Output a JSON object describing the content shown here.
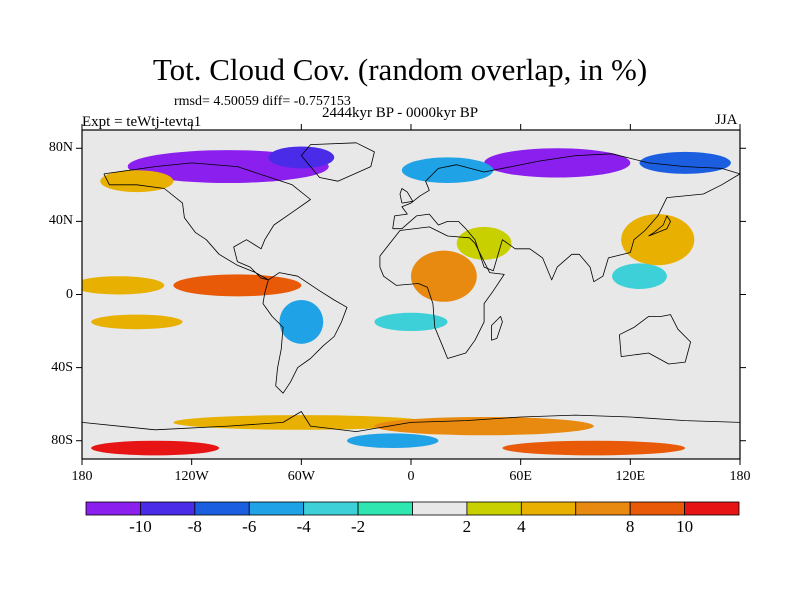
{
  "title": "Tot. Cloud Cov. (random overlap, in %)",
  "stats": "rmsd= 4.50059 diff= -0.757153",
  "period": "2444kyr BP - 0000kyr BP",
  "experiment": "Expt = teWtj-tevta1",
  "season": "JJA",
  "axes": {
    "lat_ticks": [
      {
        "label": "80N",
        "value": 80
      },
      {
        "label": "40N",
        "value": 40
      },
      {
        "label": "0",
        "value": 0
      },
      {
        "label": "40S",
        "value": -40
      },
      {
        "label": "80S",
        "value": -80
      }
    ],
    "lon_ticks": [
      {
        "label": "180",
        "value": -180
      },
      {
        "label": "120W",
        "value": -120
      },
      {
        "label": "60W",
        "value": -60
      },
      {
        "label": "0",
        "value": 0
      },
      {
        "label": "60E",
        "value": 60
      },
      {
        "label": "120E",
        "value": 120
      },
      {
        "label": "180",
        "value": 180
      }
    ],
    "lat_range": [
      -90,
      90
    ],
    "lon_range": [
      -180,
      180
    ]
  },
  "colorbar": {
    "colors": [
      "#8b20ee",
      "#4a2be8",
      "#1b5fe0",
      "#1fa2e6",
      "#3ed0d8",
      "#2ee6b0",
      "#e8e8e8",
      "#c8d000",
      "#e8b000",
      "#e88a10",
      "#e85a08",
      "#e61414"
    ],
    "labels": [
      {
        "text": "-10",
        "boundary": 1
      },
      {
        "text": "-8",
        "boundary": 2
      },
      {
        "text": "-6",
        "boundary": 3
      },
      {
        "text": "-4",
        "boundary": 4
      },
      {
        "text": "-2",
        "boundary": 5
      },
      {
        "text": "2",
        "boundary": 7
      },
      {
        "text": "4",
        "boundary": 8
      },
      {
        "text": "8",
        "boundary": 10
      },
      {
        "text": "10",
        "boundary": 11
      }
    ]
  },
  "field_patches": [
    {
      "lon": -100,
      "lat": 70,
      "rx": 55,
      "ry": 9,
      "color": "#8b20ee"
    },
    {
      "lon": -60,
      "lat": 75,
      "rx": 18,
      "ry": 6,
      "color": "#4a2be8"
    },
    {
      "lon": 80,
      "lat": 72,
      "rx": 40,
      "ry": 8,
      "color": "#8b20ee"
    },
    {
      "lon": 20,
      "lat": 68,
      "rx": 25,
      "ry": 7,
      "color": "#1fa2e6"
    },
    {
      "lon": 150,
      "lat": 72,
      "rx": 25,
      "ry": 6,
      "color": "#1b5fe0"
    },
    {
      "lon": -150,
      "lat": 62,
      "rx": 20,
      "ry": 6,
      "color": "#e8b000"
    },
    {
      "lon": 135,
      "lat": 30,
      "rx": 20,
      "ry": 14,
      "color": "#e8b000"
    },
    {
      "lon": 125,
      "lat": 10,
      "rx": 15,
      "ry": 7,
      "color": "#3ed0d8"
    },
    {
      "lon": 18,
      "lat": 10,
      "rx": 18,
      "ry": 14,
      "color": "#e88a10"
    },
    {
      "lon": 40,
      "lat": 28,
      "rx": 15,
      "ry": 9,
      "color": "#c8d000"
    },
    {
      "lon": -95,
      "lat": 5,
      "rx": 35,
      "ry": 6,
      "color": "#e85a08"
    },
    {
      "lon": -160,
      "lat": 5,
      "rx": 25,
      "ry": 5,
      "color": "#e8b000"
    },
    {
      "lon": -60,
      "lat": -15,
      "rx": 12,
      "ry": 12,
      "color": "#1fa2e6"
    },
    {
      "lon": 0,
      "lat": -15,
      "rx": 20,
      "ry": 5,
      "color": "#3ed0d8"
    },
    {
      "lon": -150,
      "lat": -15,
      "rx": 25,
      "ry": 4,
      "color": "#e8b000"
    },
    {
      "lon": -60,
      "lat": -70,
      "rx": 70,
      "ry": 4,
      "color": "#e8b000"
    },
    {
      "lon": 40,
      "lat": -72,
      "rx": 60,
      "ry": 5,
      "color": "#e88a10"
    },
    {
      "lon": -140,
      "lat": -84,
      "rx": 35,
      "ry": 4,
      "color": "#e61414"
    },
    {
      "lon": 100,
      "lat": -84,
      "rx": 50,
      "ry": 4,
      "color": "#e85a08"
    },
    {
      "lon": -10,
      "lat": -80,
      "rx": 25,
      "ry": 4,
      "color": "#1fa2e6"
    }
  ],
  "continents": [
    {
      "name": "North America",
      "points": [
        [
          -168,
          66
        ],
        [
          -140,
          70
        ],
        [
          -120,
          72
        ],
        [
          -95,
          70
        ],
        [
          -80,
          65
        ],
        [
          -65,
          60
        ],
        [
          -55,
          52
        ],
        [
          -65,
          45
        ],
        [
          -75,
          38
        ],
        [
          -80,
          30
        ],
        [
          -82,
          25
        ],
        [
          -90,
          30
        ],
        [
          -97,
          26
        ],
        [
          -95,
          18
        ],
        [
          -88,
          15
        ],
        [
          -82,
          9
        ],
        [
          -78,
          8
        ],
        [
          -85,
          12
        ],
        [
          -95,
          16
        ],
        [
          -105,
          22
        ],
        [
          -112,
          30
        ],
        [
          -118,
          34
        ],
        [
          -124,
          42
        ],
        [
          -125,
          50
        ],
        [
          -135,
          58
        ],
        [
          -150,
          60
        ],
        [
          -165,
          60
        ],
        [
          -168,
          66
        ]
      ]
    },
    {
      "name": "Greenland",
      "points": [
        [
          -55,
          82
        ],
        [
          -30,
          83
        ],
        [
          -20,
          78
        ],
        [
          -22,
          70
        ],
        [
          -40,
          62
        ],
        [
          -50,
          64
        ],
        [
          -55,
          70
        ],
        [
          -60,
          76
        ],
        [
          -55,
          82
        ]
      ]
    },
    {
      "name": "South America",
      "points": [
        [
          -78,
          8
        ],
        [
          -72,
          12
        ],
        [
          -62,
          10
        ],
        [
          -50,
          2
        ],
        [
          -42,
          -3
        ],
        [
          -35,
          -7
        ],
        [
          -38,
          -15
        ],
        [
          -42,
          -23
        ],
        [
          -48,
          -28
        ],
        [
          -55,
          -35
        ],
        [
          -62,
          -40
        ],
        [
          -66,
          -48
        ],
        [
          -70,
          -54
        ],
        [
          -74,
          -50
        ],
        [
          -73,
          -40
        ],
        [
          -71,
          -30
        ],
        [
          -70,
          -18
        ],
        [
          -76,
          -12
        ],
        [
          -81,
          -5
        ],
        [
          -80,
          1
        ],
        [
          -78,
          8
        ]
      ]
    },
    {
      "name": "Eurasia",
      "points": [
        [
          -10,
          36
        ],
        [
          -9,
          43
        ],
        [
          -2,
          44
        ],
        [
          -5,
          48
        ],
        [
          0,
          50
        ],
        [
          5,
          54
        ],
        [
          10,
          57
        ],
        [
          8,
          62
        ],
        [
          15,
          69
        ],
        [
          25,
          71
        ],
        [
          40,
          67
        ],
        [
          55,
          70
        ],
        [
          70,
          73
        ],
        [
          90,
          76
        ],
        [
          110,
          77
        ],
        [
          130,
          72
        ],
        [
          150,
          70
        ],
        [
          170,
          69
        ],
        [
          180,
          66
        ],
        [
          170,
          60
        ],
        [
          160,
          55
        ],
        [
          140,
          53
        ],
        [
          135,
          43
        ],
        [
          128,
          35
        ],
        [
          122,
          30
        ],
        [
          120,
          23
        ],
        [
          108,
          20
        ],
        [
          105,
          10
        ],
        [
          100,
          7
        ],
        [
          98,
          15
        ],
        [
          92,
          22
        ],
        [
          88,
          22
        ],
        [
          80,
          15
        ],
        [
          77,
          8
        ],
        [
          72,
          20
        ],
        [
          65,
          25
        ],
        [
          57,
          25
        ],
        [
          50,
          30
        ],
        [
          45,
          13
        ],
        [
          40,
          15
        ],
        [
          35,
          30
        ],
        [
          30,
          36
        ],
        [
          26,
          40
        ],
        [
          20,
          40
        ],
        [
          15,
          38
        ],
        [
          10,
          44
        ],
        [
          3,
          43
        ],
        [
          -5,
          36
        ],
        [
          -10,
          36
        ]
      ]
    },
    {
      "name": "Africa",
      "points": [
        [
          -17,
          21
        ],
        [
          -10,
          30
        ],
        [
          -6,
          35
        ],
        [
          10,
          37
        ],
        [
          20,
          32
        ],
        [
          32,
          31
        ],
        [
          35,
          28
        ],
        [
          43,
          12
        ],
        [
          51,
          11
        ],
        [
          45,
          2
        ],
        [
          40,
          -5
        ],
        [
          40,
          -15
        ],
        [
          35,
          -25
        ],
        [
          30,
          -32
        ],
        [
          20,
          -35
        ],
        [
          18,
          -30
        ],
        [
          13,
          -18
        ],
        [
          12,
          -5
        ],
        [
          9,
          4
        ],
        [
          4,
          6
        ],
        [
          -8,
          5
        ],
        [
          -15,
          10
        ],
        [
          -17,
          15
        ],
        [
          -17,
          21
        ]
      ]
    },
    {
      "name": "Australia",
      "points": [
        [
          114,
          -22
        ],
        [
          122,
          -18
        ],
        [
          130,
          -12
        ],
        [
          137,
          -12
        ],
        [
          142,
          -11
        ],
        [
          146,
          -19
        ],
        [
          153,
          -26
        ],
        [
          150,
          -37
        ],
        [
          141,
          -38
        ],
        [
          130,
          -32
        ],
        [
          115,
          -34
        ],
        [
          114,
          -22
        ]
      ]
    },
    {
      "name": "Antarctica",
      "points": [
        [
          -180,
          -70
        ],
        [
          -140,
          -74
        ],
        [
          -100,
          -72
        ],
        [
          -70,
          -70
        ],
        [
          -60,
          -64
        ],
        [
          -55,
          -72
        ],
        [
          -30,
          -75
        ],
        [
          0,
          -70
        ],
        [
          30,
          -69
        ],
        [
          60,
          -67
        ],
        [
          90,
          -66
        ],
        [
          120,
          -67
        ],
        [
          150,
          -69
        ],
        [
          180,
          -70
        ]
      ]
    },
    {
      "name": "Madagascar",
      "points": [
        [
          44,
          -25
        ],
        [
          47,
          -24
        ],
        [
          50,
          -15
        ],
        [
          49,
          -12
        ],
        [
          44,
          -17
        ],
        [
          44,
          -25
        ]
      ]
    },
    {
      "name": "Japan",
      "points": [
        [
          130,
          32
        ],
        [
          135,
          34
        ],
        [
          140,
          36
        ],
        [
          142,
          40
        ],
        [
          140,
          43
        ],
        [
          138,
          38
        ],
        [
          133,
          34
        ],
        [
          130,
          32
        ]
      ]
    },
    {
      "name": "Great Britain",
      "points": [
        [
          -5,
          50
        ],
        [
          1,
          51
        ],
        [
          -2,
          56
        ],
        [
          -5,
          58
        ],
        [
          -6,
          55
        ],
        [
          -5,
          50
        ]
      ]
    }
  ]
}
